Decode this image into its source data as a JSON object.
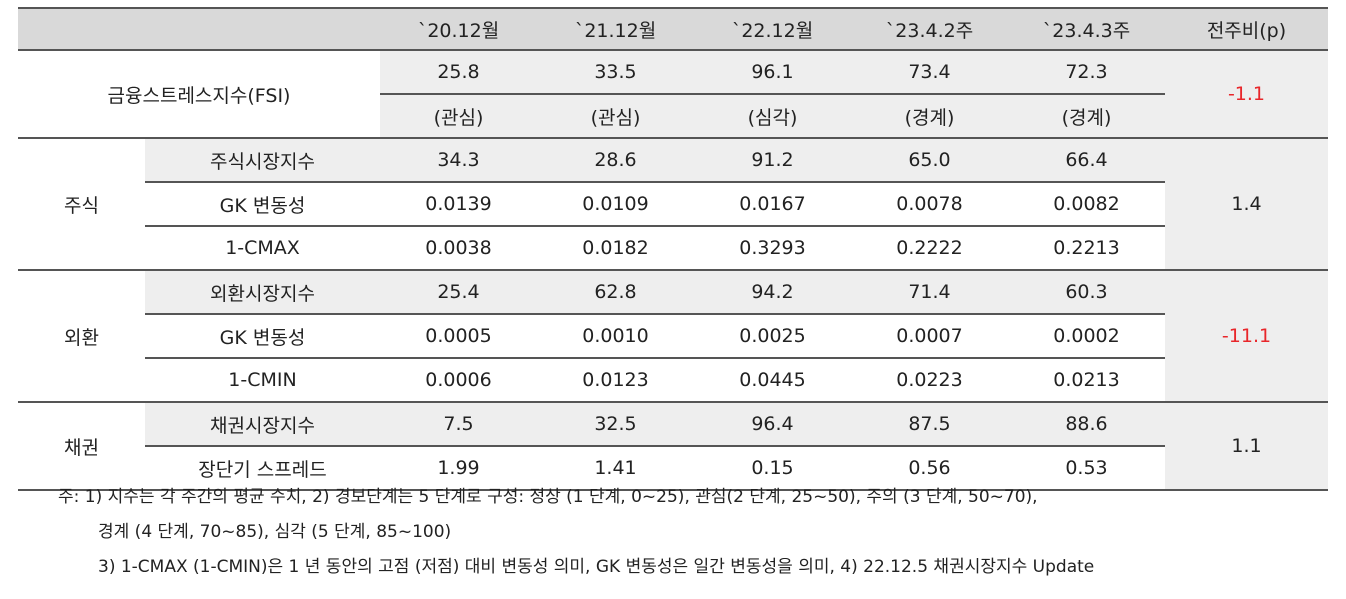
{
  "header": [
    "",
    "`20.12월",
    "`21.12월",
    "`22.12월",
    "`23.4.2주",
    "`23.4.3주",
    "전주비(p)"
  ],
  "fsi": {
    "label": "금융스트레스지수(FSI)",
    "values": [
      "25.8",
      "33.5",
      "96.1",
      "73.4",
      "72.3"
    ],
    "levels": [
      "(관심)",
      "(관심)",
      "(심각)",
      "(경계)",
      "(경계)"
    ],
    "change": "-1.1"
  },
  "groups": [
    {
      "name": "주식",
      "change": "1.4",
      "rows": [
        {
          "label": "주식시장지수",
          "values": [
            "34.3",
            "28.6",
            "91.2",
            "65.0",
            "66.4"
          ]
        },
        {
          "label": "GK 변동성",
          "values": [
            "0.0139",
            "0.0109",
            "0.0167",
            "0.0078",
            "0.0082"
          ]
        },
        {
          "label": "1-CMAX",
          "values": [
            "0.0038",
            "0.0182",
            "0.3293",
            "0.2222",
            "0.2213"
          ]
        }
      ]
    },
    {
      "name": "외환",
      "change": "-11.1",
      "rows": [
        {
          "label": "외환시장지수",
          "values": [
            "25.4",
            "62.8",
            "94.2",
            "71.4",
            "60.3"
          ]
        },
        {
          "label": "GK 변동성",
          "values": [
            "0.0005",
            "0.0010",
            "0.0025",
            "0.0007",
            "0.0002"
          ]
        },
        {
          "label": "1-CMIN",
          "values": [
            "0.0006",
            "0.0123",
            "0.0445",
            "0.0223",
            "0.0213"
          ]
        }
      ]
    },
    {
      "name": "채권",
      "change": "1.1",
      "rows": [
        {
          "label": "채권시장지수",
          "values": [
            "7.5",
            "32.5",
            "96.4",
            "87.5",
            "88.6"
          ]
        },
        {
          "label": "장단기 스프레드",
          "values": [
            "1.99",
            "1.41",
            "0.15",
            "0.56",
            "0.53"
          ]
        }
      ]
    }
  ],
  "notes": [
    "주: 1) 지수는 각 주간의 평균 수치, 2) 경보단계는 5 단계로 구성: 정상 (1 단계, 0~25), 관심(2 단계, 25~50), 주의 (3 단계, 50~70),",
    "경계 (4 단계, 70~85), 심각 (5 단계, 85~100)",
    "3) 1-CMAX (1-CMIN)은 1 년 동안의 고점 (저점) 대비 변동성 의미, GK 변동성은 일간 변동성을 의미, 4) 22.12.5 채권시장지수 Update"
  ],
  "colors": {
    "header_bg": "#d9d9d9",
    "shade_bg": "#eeeeee",
    "negative": "#e8262a"
  }
}
